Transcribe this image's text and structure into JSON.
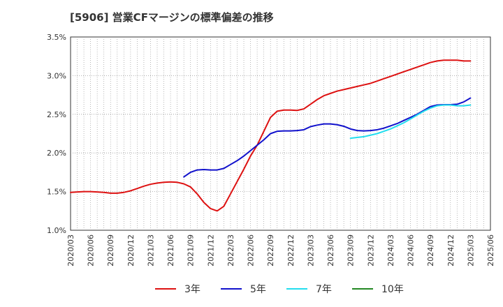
{
  "chart_data": {
    "type": "line",
    "title": "[5906]  営業CFマージンの標準偏差の推移",
    "xlabel": "",
    "ylabel": "",
    "ylim": [
      1.0,
      3.5
    ],
    "y_unit": "%",
    "yticks": [
      "1.0%",
      "1.5%",
      "2.0%",
      "2.5%",
      "3.0%",
      "3.5%"
    ],
    "xticks": [
      "2020/03",
      "2020/06",
      "2020/09",
      "2020/12",
      "2021/03",
      "2021/06",
      "2021/09",
      "2021/12",
      "2022/03",
      "2022/06",
      "2022/09",
      "2022/12",
      "2023/03",
      "2023/06",
      "2023/09",
      "2023/12",
      "2024/03",
      "2024/06",
      "2024/09",
      "2024/12",
      "2025/03",
      "2025/06"
    ],
    "x_range": [
      "2020/03",
      "2025/06"
    ],
    "grid": true,
    "legend_position": "bottom",
    "series": [
      {
        "name": "3年",
        "color": "#dd1111",
        "points": [
          [
            "2020/03",
            1.49
          ],
          [
            "2020/04",
            1.495
          ],
          [
            "2020/05",
            1.5
          ],
          [
            "2020/06",
            1.5
          ],
          [
            "2020/07",
            1.495
          ],
          [
            "2020/08",
            1.49
          ],
          [
            "2020/09",
            1.48
          ],
          [
            "2020/10",
            1.48
          ],
          [
            "2020/11",
            1.49
          ],
          [
            "2020/12",
            1.51
          ],
          [
            "2021/01",
            1.54
          ],
          [
            "2021/02",
            1.57
          ],
          [
            "2021/03",
            1.595
          ],
          [
            "2021/04",
            1.61
          ],
          [
            "2021/05",
            1.62
          ],
          [
            "2021/06",
            1.625
          ],
          [
            "2021/07",
            1.62
          ],
          [
            "2021/08",
            1.6
          ],
          [
            "2021/09",
            1.56
          ],
          [
            "2021/10",
            1.47
          ],
          [
            "2021/11",
            1.36
          ],
          [
            "2021/12",
            1.28
          ],
          [
            "2022/01",
            1.25
          ],
          [
            "2022/02",
            1.31
          ],
          [
            "2022/03",
            1.47
          ],
          [
            "2022/04",
            1.63
          ],
          [
            "2022/05",
            1.79
          ],
          [
            "2022/06",
            1.96
          ],
          [
            "2022/07",
            2.1
          ],
          [
            "2022/08",
            2.28
          ],
          [
            "2022/09",
            2.46
          ],
          [
            "2022/10",
            2.54
          ],
          [
            "2022/11",
            2.555
          ],
          [
            "2022/12",
            2.555
          ],
          [
            "2023/01",
            2.55
          ],
          [
            "2023/02",
            2.57
          ],
          [
            "2023/03",
            2.63
          ],
          [
            "2023/04",
            2.69
          ],
          [
            "2023/05",
            2.74
          ],
          [
            "2023/06",
            2.77
          ],
          [
            "2023/07",
            2.8
          ],
          [
            "2023/08",
            2.82
          ],
          [
            "2023/09",
            2.84
          ],
          [
            "2023/10",
            2.86
          ],
          [
            "2023/11",
            2.88
          ],
          [
            "2023/12",
            2.9
          ],
          [
            "2024/01",
            2.93
          ],
          [
            "2024/02",
            2.96
          ],
          [
            "2024/03",
            2.99
          ],
          [
            "2024/04",
            3.02
          ],
          [
            "2024/05",
            3.05
          ],
          [
            "2024/06",
            3.08
          ],
          [
            "2024/07",
            3.11
          ],
          [
            "2024/08",
            3.14
          ],
          [
            "2024/09",
            3.17
          ],
          [
            "2024/10",
            3.19
          ],
          [
            "2024/11",
            3.2
          ],
          [
            "2024/12",
            3.2
          ],
          [
            "2025/01",
            3.2
          ],
          [
            "2025/02",
            3.19
          ],
          [
            "2025/03",
            3.19
          ]
        ]
      },
      {
        "name": "5年",
        "color": "#1111cc",
        "points": [
          [
            "2021/08",
            1.69
          ],
          [
            "2021/09",
            1.75
          ],
          [
            "2021/10",
            1.78
          ],
          [
            "2021/11",
            1.785
          ],
          [
            "2021/12",
            1.78
          ],
          [
            "2022/01",
            1.78
          ],
          [
            "2022/02",
            1.8
          ],
          [
            "2022/03",
            1.85
          ],
          [
            "2022/04",
            1.9
          ],
          [
            "2022/05",
            1.96
          ],
          [
            "2022/06",
            2.03
          ],
          [
            "2022/07",
            2.1
          ],
          [
            "2022/08",
            2.17
          ],
          [
            "2022/09",
            2.25
          ],
          [
            "2022/10",
            2.28
          ],
          [
            "2022/11",
            2.285
          ],
          [
            "2022/12",
            2.285
          ],
          [
            "2023/01",
            2.29
          ],
          [
            "2023/02",
            2.3
          ],
          [
            "2023/03",
            2.34
          ],
          [
            "2023/04",
            2.36
          ],
          [
            "2023/05",
            2.375
          ],
          [
            "2023/06",
            2.375
          ],
          [
            "2023/07",
            2.365
          ],
          [
            "2023/08",
            2.345
          ],
          [
            "2023/09",
            2.31
          ],
          [
            "2023/10",
            2.29
          ],
          [
            "2023/11",
            2.285
          ],
          [
            "2023/12",
            2.29
          ],
          [
            "2024/01",
            2.3
          ],
          [
            "2024/02",
            2.32
          ],
          [
            "2024/03",
            2.35
          ],
          [
            "2024/04",
            2.38
          ],
          [
            "2024/05",
            2.42
          ],
          [
            "2024/06",
            2.46
          ],
          [
            "2024/07",
            2.5
          ],
          [
            "2024/08",
            2.55
          ],
          [
            "2024/09",
            2.6
          ],
          [
            "2024/10",
            2.62
          ],
          [
            "2024/11",
            2.625
          ],
          [
            "2024/12",
            2.625
          ],
          [
            "2025/01",
            2.63
          ],
          [
            "2025/02",
            2.66
          ],
          [
            "2025/03",
            2.71
          ]
        ]
      },
      {
        "name": "7年",
        "color": "#22ddee",
        "points": [
          [
            "2023/09",
            2.19
          ],
          [
            "2023/10",
            2.2
          ],
          [
            "2023/11",
            2.21
          ],
          [
            "2023/12",
            2.23
          ],
          [
            "2024/01",
            2.25
          ],
          [
            "2024/02",
            2.28
          ],
          [
            "2024/03",
            2.31
          ],
          [
            "2024/04",
            2.35
          ],
          [
            "2024/05",
            2.39
          ],
          [
            "2024/06",
            2.44
          ],
          [
            "2024/07",
            2.49
          ],
          [
            "2024/08",
            2.54
          ],
          [
            "2024/09",
            2.58
          ],
          [
            "2024/10",
            2.61
          ],
          [
            "2024/11",
            2.62
          ],
          [
            "2024/12",
            2.62
          ],
          [
            "2025/01",
            2.61
          ],
          [
            "2025/02",
            2.61
          ],
          [
            "2025/03",
            2.62
          ]
        ]
      },
      {
        "name": "10年",
        "color": "#228822",
        "points": []
      }
    ]
  }
}
